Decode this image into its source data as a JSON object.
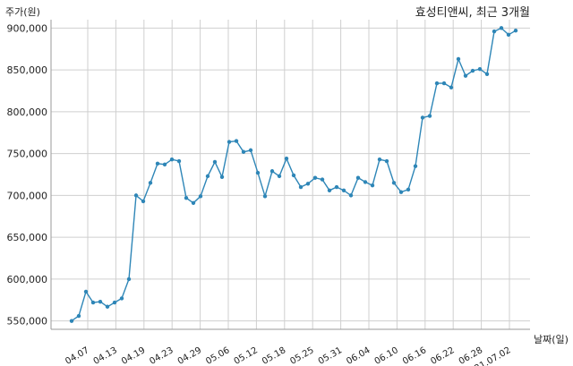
{
  "chart_data": {
    "type": "line",
    "title": "효성티앤씨, 최근 3개월",
    "ylabel": "주가(원)",
    "xlabel": "날짜(일)",
    "ylim": [
      540000,
      910000
    ],
    "y_ticks": [
      550000,
      600000,
      650000,
      700000,
      750000,
      800000,
      850000,
      900000
    ],
    "y_tick_labels": [
      "550,000",
      "600,000",
      "650,000",
      "700,000",
      "750,000",
      "800,000",
      "850,000",
      "900,000"
    ],
    "x_tick_labels": [
      "04.07",
      "04.13",
      "04.19",
      "04.23",
      "04.29",
      "05.06",
      "05.12",
      "05.18",
      "05.25",
      "05.31",
      "06.04",
      "06.10",
      "06.16",
      "06.22",
      "06.28",
      "21.07.02"
    ],
    "grid": true,
    "line_color": "#2e86b7",
    "values": [
      550000,
      556000,
      585000,
      572000,
      573000,
      567000,
      572000,
      577000,
      600000,
      700000,
      693000,
      715000,
      738000,
      737000,
      743000,
      741000,
      697000,
      691000,
      699000,
      723000,
      740000,
      722000,
      764000,
      765000,
      752000,
      754000,
      727000,
      699000,
      729000,
      723000,
      744000,
      724000,
      710000,
      714000,
      721000,
      719000,
      706000,
      710000,
      706000,
      700000,
      721000,
      716000,
      712000,
      743000,
      741000,
      715000,
      704000,
      707000,
      735000,
      793000,
      795000,
      834000,
      834000,
      829000,
      863000,
      843000,
      849000,
      851000,
      845000,
      896000,
      900000,
      892000,
      897000
    ]
  }
}
